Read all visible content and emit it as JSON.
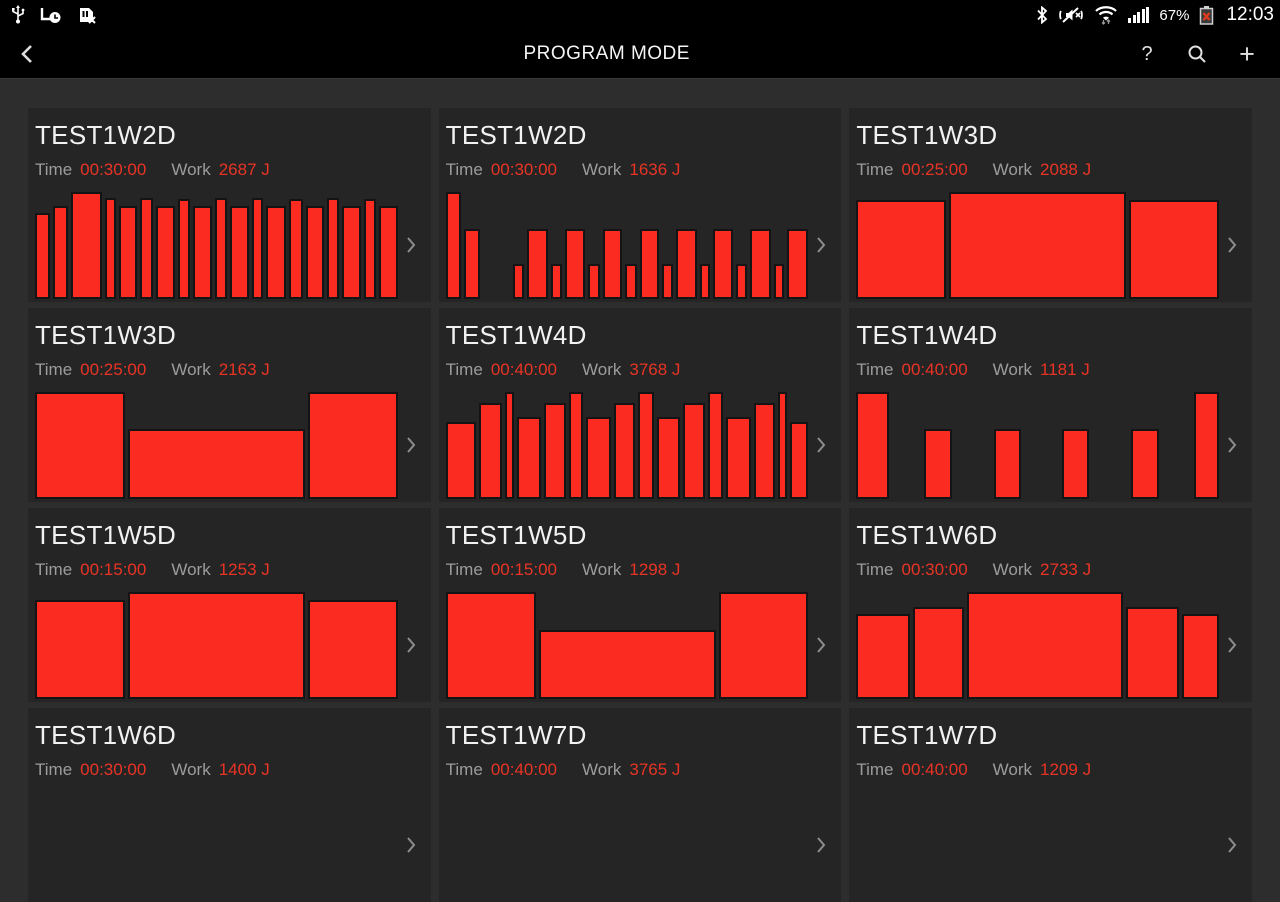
{
  "status_bar": {
    "time": "12:03",
    "battery_percent": "67%",
    "left_icons": [
      "usb-icon",
      "smart-stay-icon",
      "no-sim-icon"
    ],
    "right_icons": [
      "bluetooth-icon",
      "vibrate-mute-icon",
      "wifi-icon",
      "signal-strength-icon",
      "battery-error-icon"
    ],
    "signal_bar_heights": [
      5,
      8,
      11,
      14,
      16
    ]
  },
  "header": {
    "title": "PROGRAM MODE",
    "icons": [
      "back-icon",
      "help-icon",
      "search-icon",
      "add-icon"
    ],
    "help_glyph": "?",
    "add_glyph": "+"
  },
  "labels": {
    "time": "Time",
    "work": "Work"
  },
  "colors": {
    "bar_red": "#fb2b22",
    "text_red": "#e93425",
    "card_bg": "#252525",
    "page_bg": "#2d2d2d",
    "bar_black": "#000000"
  },
  "programs": [
    {
      "name": "TEST1W2D",
      "time": "00:30:00",
      "work": "2687 J",
      "bars": [
        [
          16,
          0.8
        ],
        [
          15,
          0.87
        ],
        [
          37,
          1
        ],
        [
          10,
          0.94
        ],
        [
          20,
          0.87
        ],
        [
          13,
          0.94
        ],
        [
          21,
          0.87
        ],
        [
          11,
          0.93
        ],
        [
          21,
          0.87
        ],
        [
          11,
          0.94
        ],
        [
          21,
          0.87
        ],
        [
          10,
          0.94
        ],
        [
          22,
          0.87
        ],
        [
          13,
          0.93
        ],
        [
          20,
          0.87
        ],
        [
          11,
          0.94
        ],
        [
          21,
          0.87
        ],
        [
          11,
          0.93
        ],
        [
          21,
          0.87
        ]
      ]
    },
    {
      "name": "TEST1W2D",
      "time": "00:30:00",
      "work": "1636 J",
      "bars": [
        [
          18,
          1
        ],
        [
          18,
          0.65
        ],
        [
          41,
          0
        ],
        [
          11,
          0.33
        ],
        [
          25,
          0.65
        ],
        [
          11,
          0.33
        ],
        [
          25,
          0.65
        ],
        [
          11,
          0.33
        ],
        [
          24,
          0.65
        ],
        [
          11,
          0.33
        ],
        [
          24,
          0.65
        ],
        [
          11,
          0.33
        ],
        [
          25,
          0.65
        ],
        [
          10,
          0.33
        ],
        [
          24,
          0.65
        ],
        [
          11,
          0.33
        ],
        [
          25,
          0.65
        ],
        [
          10,
          0.33
        ],
        [
          26,
          0.65
        ]
      ]
    },
    {
      "name": "TEST1W3D",
      "time": "00:25:00",
      "work": "2088 J",
      "bars": [
        [
          90,
          0.92
        ],
        [
          182,
          1
        ],
        [
          90,
          0.92
        ]
      ]
    },
    {
      "name": "TEST1W3D",
      "time": "00:25:00",
      "work": "2163 J",
      "bars": [
        [
          90,
          1
        ],
        [
          182,
          0.65
        ],
        [
          90,
          1
        ]
      ]
    },
    {
      "name": "TEST1W4D",
      "time": "00:40:00",
      "work": "3768 J",
      "bars": [
        [
          38,
          0.72
        ],
        [
          26,
          0.9
        ],
        [
          7,
          1
        ],
        [
          29,
          0.77
        ],
        [
          25,
          0.9
        ],
        [
          15,
          1
        ],
        [
          30,
          0.77
        ],
        [
          24,
          0.9
        ],
        [
          16,
          1
        ],
        [
          27,
          0.77
        ],
        [
          26,
          0.9
        ],
        [
          15,
          1
        ],
        [
          30,
          0.77
        ],
        [
          25,
          0.9
        ],
        [
          7,
          1
        ],
        [
          20,
          0.72
        ]
      ]
    },
    {
      "name": "TEST1W4D",
      "time": "00:40:00",
      "work": "1181 J",
      "bars": [
        [
          34,
          1
        ],
        [
          34,
          0
        ],
        [
          28,
          0.65
        ],
        [
          42,
          0
        ],
        [
          28,
          0.65
        ],
        [
          41,
          0
        ],
        [
          27,
          0.65
        ],
        [
          42,
          0
        ],
        [
          28,
          0.65
        ],
        [
          34,
          0
        ],
        [
          25,
          1
        ]
      ]
    },
    {
      "name": "TEST1W5D",
      "time": "00:15:00",
      "work": "1253 J",
      "bars": [
        [
          90,
          0.92
        ],
        [
          182,
          1
        ],
        [
          90,
          0.92
        ]
      ]
    },
    {
      "name": "TEST1W5D",
      "time": "00:15:00",
      "work": "1298 J",
      "bars": [
        [
          96,
          1
        ],
        [
          194,
          0.64
        ],
        [
          95,
          1
        ]
      ]
    },
    {
      "name": "TEST1W6D",
      "time": "00:30:00",
      "work": "2733 J",
      "bars": [
        [
          53,
          0.79
        ],
        [
          51,
          0.86
        ],
        [
          164,
          1
        ],
        [
          52,
          0.86
        ],
        [
          36,
          0.79
        ]
      ]
    },
    {
      "name": "TEST1W6D",
      "time": "00:30:00",
      "work": "1400 J",
      "bars": []
    },
    {
      "name": "TEST1W7D",
      "time": "00:40:00",
      "work": "3765 J",
      "bars": []
    },
    {
      "name": "TEST1W7D",
      "time": "00:40:00",
      "work": "1209 J",
      "bars": []
    }
  ]
}
